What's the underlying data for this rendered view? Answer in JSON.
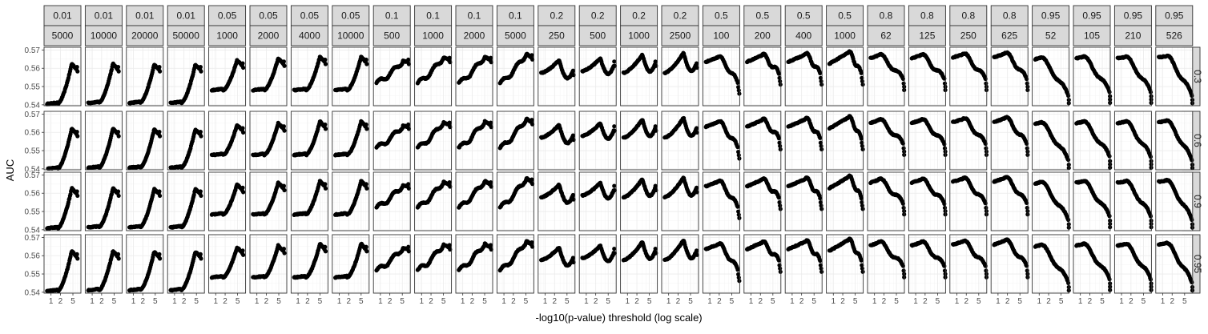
{
  "chart_data": {
    "type": "scatter",
    "xlabel": "-log10(p-value) threshold (log scale)",
    "ylabel": "AUC",
    "x_scale": "log10",
    "xlim": [
      0.6,
      9
    ],
    "x_ticks": [
      1,
      2,
      5
    ],
    "x_tick_labels": [
      "1",
      "2",
      "5"
    ],
    "ylim": [
      0.5395,
      0.5715
    ],
    "y_ticks": [
      0.54,
      0.55,
      0.56,
      0.57
    ],
    "y_tick_labels": [
      "0.54",
      "0.55",
      "0.56",
      "0.57"
    ],
    "grid": true,
    "facet_columns": [
      {
        "top": "0.01",
        "bottom": "5000",
        "shape": "rise",
        "peak_x": 4.6,
        "peak": 0.5625,
        "base": 0.5405,
        "end": 0.5595,
        "max_x": 6.5
      },
      {
        "top": "0.01",
        "bottom": "10000",
        "shape": "rise",
        "peak_x": 4.6,
        "peak": 0.5625,
        "base": 0.541,
        "end": 0.5595,
        "max_x": 6.5
      },
      {
        "top": "0.01",
        "bottom": "20000",
        "shape": "rise",
        "peak_x": 4.6,
        "peak": 0.562,
        "base": 0.541,
        "end": 0.5595,
        "max_x": 6.5
      },
      {
        "top": "0.01",
        "bottom": "50000",
        "shape": "rise",
        "peak_x": 4.6,
        "peak": 0.562,
        "base": 0.541,
        "end": 0.5595,
        "max_x": 6.5
      },
      {
        "top": "0.05",
        "bottom": "1000",
        "shape": "rise",
        "peak_x": 4.8,
        "peak": 0.5645,
        "base": 0.548,
        "end": 0.5615,
        "max_x": 7
      },
      {
        "top": "0.05",
        "bottom": "2000",
        "shape": "rise",
        "peak_x": 4.8,
        "peak": 0.5655,
        "base": 0.548,
        "end": 0.5625,
        "max_x": 7
      },
      {
        "top": "0.05",
        "bottom": "4000",
        "shape": "rise",
        "peak_x": 5.0,
        "peak": 0.5665,
        "base": 0.548,
        "end": 0.5635,
        "max_x": 7
      },
      {
        "top": "0.05",
        "bottom": "10000",
        "shape": "rise",
        "peak_x": 5.0,
        "peak": 0.5665,
        "base": 0.548,
        "end": 0.5635,
        "max_x": 7
      },
      {
        "top": "0.1",
        "bottom": "500",
        "shape": "wave",
        "peak_x": 5.2,
        "peak": 0.564,
        "base": 0.552,
        "end": 0.5635,
        "max_x": 7.5
      },
      {
        "top": "0.1",
        "bottom": "1000",
        "shape": "wave",
        "peak_x": 5.0,
        "peak": 0.566,
        "base": 0.552,
        "end": 0.5645,
        "max_x": 7.5
      },
      {
        "top": "0.1",
        "bottom": "2000",
        "shape": "wave",
        "peak_x": 5.0,
        "peak": 0.5665,
        "base": 0.552,
        "end": 0.5645,
        "max_x": 7.5
      },
      {
        "top": "0.1",
        "bottom": "5000",
        "shape": "wave",
        "peak_x": 5.2,
        "peak": 0.568,
        "base": 0.552,
        "end": 0.566,
        "max_x": 7.5
      },
      {
        "top": "0.2",
        "bottom": "250",
        "shape": "dip",
        "peak_x": 2.8,
        "peak": 0.5645,
        "base": 0.5575,
        "end": 0.5575,
        "max_x": 7.5
      },
      {
        "top": "0.2",
        "bottom": "500",
        "shape": "dip",
        "peak_x": 2.8,
        "peak": 0.5655,
        "base": 0.5585,
        "end": 0.5625,
        "max_x": 7.5
      },
      {
        "top": "0.2",
        "bottom": "1000",
        "shape": "dip",
        "peak_x": 3.0,
        "peak": 0.5675,
        "base": 0.5575,
        "end": 0.5625,
        "max_x": 7.5
      },
      {
        "top": "0.2",
        "bottom": "2500",
        "shape": "dip",
        "peak_x": 3.0,
        "peak": 0.5685,
        "base": 0.5575,
        "end": 0.5615,
        "max_x": 7.5
      },
      {
        "top": "0.5",
        "bottom": "100",
        "shape": "fall",
        "peak_x": 1.8,
        "peak": 0.566,
        "base": 0.5635,
        "end": 0.5515,
        "max_x": 7.8
      },
      {
        "top": "0.5",
        "bottom": "200",
        "shape": "fall",
        "peak_x": 2.2,
        "peak": 0.567,
        "base": 0.5635,
        "end": 0.5565,
        "max_x": 7.8
      },
      {
        "top": "0.5",
        "bottom": "400",
        "shape": "fall",
        "peak_x": 2.6,
        "peak": 0.5675,
        "base": 0.5635,
        "end": 0.5565,
        "max_x": 7.8
      },
      {
        "top": "0.5",
        "bottom": "1000",
        "shape": "fall",
        "peak_x": 3.0,
        "peak": 0.5685,
        "base": 0.5625,
        "end": 0.5565,
        "max_x": 7.8
      },
      {
        "top": "0.8",
        "bottom": "62",
        "shape": "fall",
        "peak_x": 1.3,
        "peak": 0.567,
        "base": 0.5655,
        "end": 0.5535,
        "max_x": 8.2
      },
      {
        "top": "0.8",
        "bottom": "125",
        "shape": "fall",
        "peak_x": 1.4,
        "peak": 0.567,
        "base": 0.5655,
        "end": 0.5535,
        "max_x": 8.2
      },
      {
        "top": "0.8",
        "bottom": "250",
        "shape": "fall",
        "peak_x": 1.5,
        "peak": 0.5675,
        "base": 0.566,
        "end": 0.5535,
        "max_x": 8.2
      },
      {
        "top": "0.8",
        "bottom": "625",
        "shape": "fall",
        "peak_x": 1.6,
        "peak": 0.568,
        "base": 0.566,
        "end": 0.5535,
        "max_x": 8.2
      },
      {
        "top": "0.95",
        "bottom": "52",
        "shape": "fall",
        "peak_x": 1.0,
        "peak": 0.5655,
        "base": 0.565,
        "end": 0.5445,
        "max_x": 8.5
      },
      {
        "top": "0.95",
        "bottom": "105",
        "shape": "fall",
        "peak_x": 1.1,
        "peak": 0.566,
        "base": 0.5655,
        "end": 0.5465,
        "max_x": 8.5
      },
      {
        "top": "0.95",
        "bottom": "210",
        "shape": "fall",
        "peak_x": 1.2,
        "peak": 0.566,
        "base": 0.5655,
        "end": 0.5465,
        "max_x": 8.5
      },
      {
        "top": "0.95",
        "bottom": "526",
        "shape": "fall",
        "peak_x": 1.2,
        "peak": 0.5665,
        "base": 0.566,
        "end": 0.5445,
        "max_x": 8.5
      }
    ],
    "facet_rows": [
      "0.3",
      "0.6",
      "0.9",
      "0.95"
    ]
  }
}
